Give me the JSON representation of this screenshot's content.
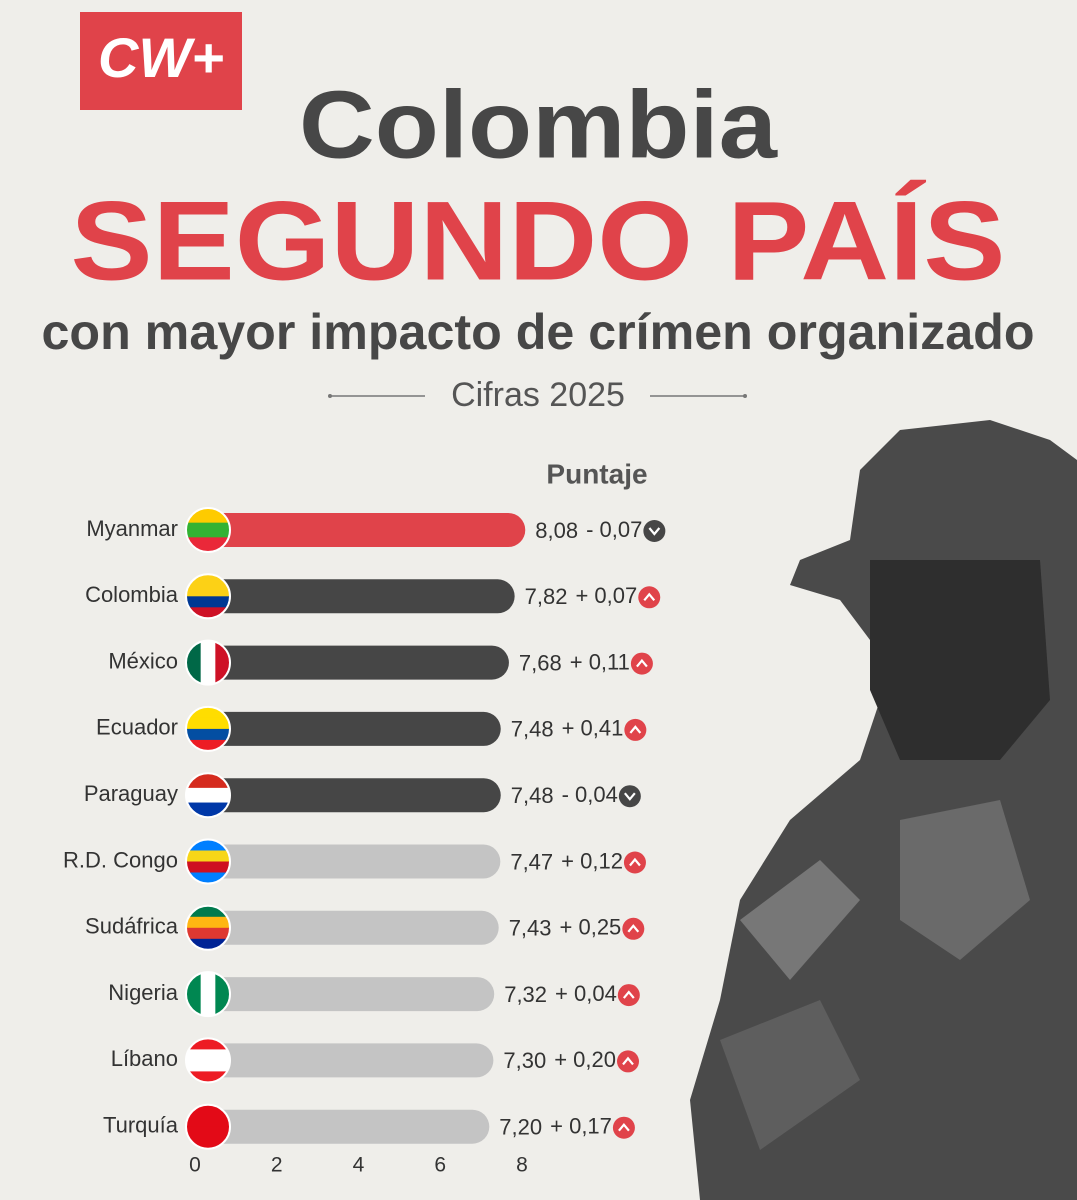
{
  "logo": "CW+",
  "chart_data": {
    "type": "bar",
    "orientation": "horizontal",
    "title": "Colombia",
    "headline": "SEGUNDO PAÍS",
    "subtitle": "con mayor impacto de crímen organizado",
    "period": "Cifras 2025",
    "value_header": "Puntaje",
    "categories": [
      "Myanmar",
      "Colombia",
      "México",
      "Ecuador",
      "Paraguay",
      "R.D. Congo",
      "Sudáfrica",
      "Nigeria",
      "Líbano",
      "Turquía"
    ],
    "values": [
      8.08,
      7.82,
      7.68,
      7.48,
      7.48,
      7.47,
      7.43,
      7.32,
      7.3,
      7.2
    ],
    "value_labels": [
      "8,08",
      "7,82",
      "7,68",
      "7,48",
      "7,48",
      "7,47",
      "7,43",
      "7,32",
      "7,30",
      "7,20"
    ],
    "changes": [
      -0.07,
      0.07,
      0.11,
      0.41,
      -0.04,
      0.12,
      0.25,
      0.04,
      0.2,
      0.17
    ],
    "change_labels": [
      "- 0,07",
      "+ 0,07",
      "+ 0,11",
      "+ 0,41",
      "- 0,04",
      "+ 0,12",
      "+ 0,25",
      "+ 0,04",
      "+ 0,20",
      "+ 0,17"
    ],
    "colors": [
      "#e0434a",
      "#464646",
      "#464646",
      "#464646",
      "#464646",
      "#c4c4c4",
      "#c4c4c4",
      "#c4c4c4",
      "#c4c4c4",
      "#c4c4c4"
    ],
    "up_color": "#e0434a",
    "down_color": "#464646",
    "xlim": [
      0,
      8
    ],
    "xticks": [
      0,
      2,
      4,
      6,
      8
    ]
  }
}
